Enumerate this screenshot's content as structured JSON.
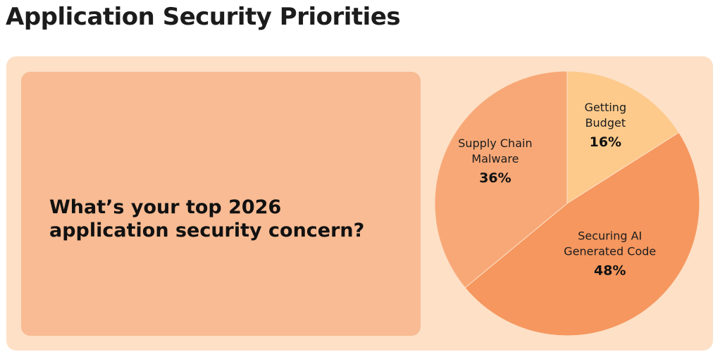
{
  "page_title": "Application Security Priorities",
  "question": {
    "line1": "What’s your top 2026",
    "line2": "application security concern?"
  },
  "chart_data": {
    "type": "pie",
    "title": "Application Security Priorities",
    "question": "What’s your top 2026 application security concern?",
    "slices": [
      {
        "label_lines": [
          "Getting",
          "Budget"
        ],
        "label": "Getting Budget",
        "value": 16,
        "value_text": "16%",
        "color": "#fdca8c"
      },
      {
        "label_lines": [
          "Securing AI",
          "Generated Code"
        ],
        "label": "Securing AI Generated Code",
        "value": 48,
        "value_text": "48%",
        "color": "#f5975f"
      },
      {
        "label_lines": [
          "Supply Chain",
          "Malware"
        ],
        "label": "Supply Chain Malware",
        "value": 36,
        "value_text": "36%",
        "color": "#f8a877"
      }
    ],
    "start_position": "top",
    "direction": "clockwise"
  }
}
